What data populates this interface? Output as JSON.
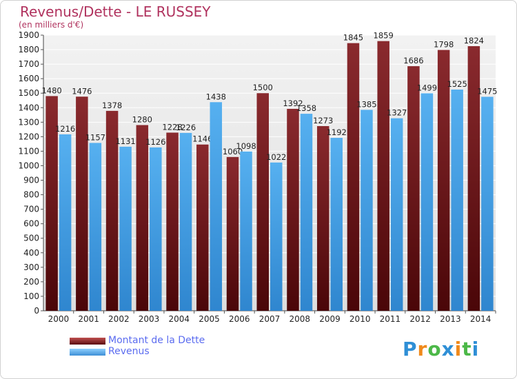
{
  "header": {
    "title": "Revenus/Dette - LE RUSSEY",
    "subtitle": "(en milliers d'€)"
  },
  "chart_data": {
    "type": "bar",
    "categories": [
      "2000",
      "2001",
      "2002",
      "2003",
      "2004",
      "2005",
      "2006",
      "2007",
      "2008",
      "2009",
      "2010",
      "2011",
      "2012",
      "2013",
      "2014"
    ],
    "series": [
      {
        "name": "Montant de la Dette",
        "color": "#7b1e22",
        "values": [
          1480,
          1476,
          1378,
          1280,
          1228,
          1146,
          1060,
          1500,
          1392,
          1273,
          1845,
          1859,
          1686,
          1798,
          1824
        ]
      },
      {
        "name": "Revenus",
        "color": "#4da3e6",
        "values": [
          1216,
          1157,
          1131,
          1126,
          1226,
          1438,
          1098,
          1022,
          1358,
          1192,
          1385,
          1327,
          1499,
          1525,
          1475
        ]
      }
    ],
    "ylim": [
      0,
      1900
    ],
    "ytick_step": 100,
    "grid": true,
    "legend_position": "bottom-left"
  },
  "legend": {
    "items": [
      {
        "label": "Montant de la Dette",
        "color": "#7b1e22"
      },
      {
        "label": "Revenus",
        "color": "#4da3e6"
      }
    ]
  },
  "logo": {
    "letters": [
      {
        "char": "P",
        "color": "#2f8fd6"
      },
      {
        "char": "r",
        "color": "#f08a1c"
      },
      {
        "char": "o",
        "color": "#4cb848"
      },
      {
        "char": "x",
        "color": "#2f8fd6"
      },
      {
        "char": "i",
        "color": "#f08a1c"
      },
      {
        "char": "t",
        "color": "#4cb848"
      },
      {
        "char": "i",
        "color": "#2f8fd6"
      }
    ]
  }
}
